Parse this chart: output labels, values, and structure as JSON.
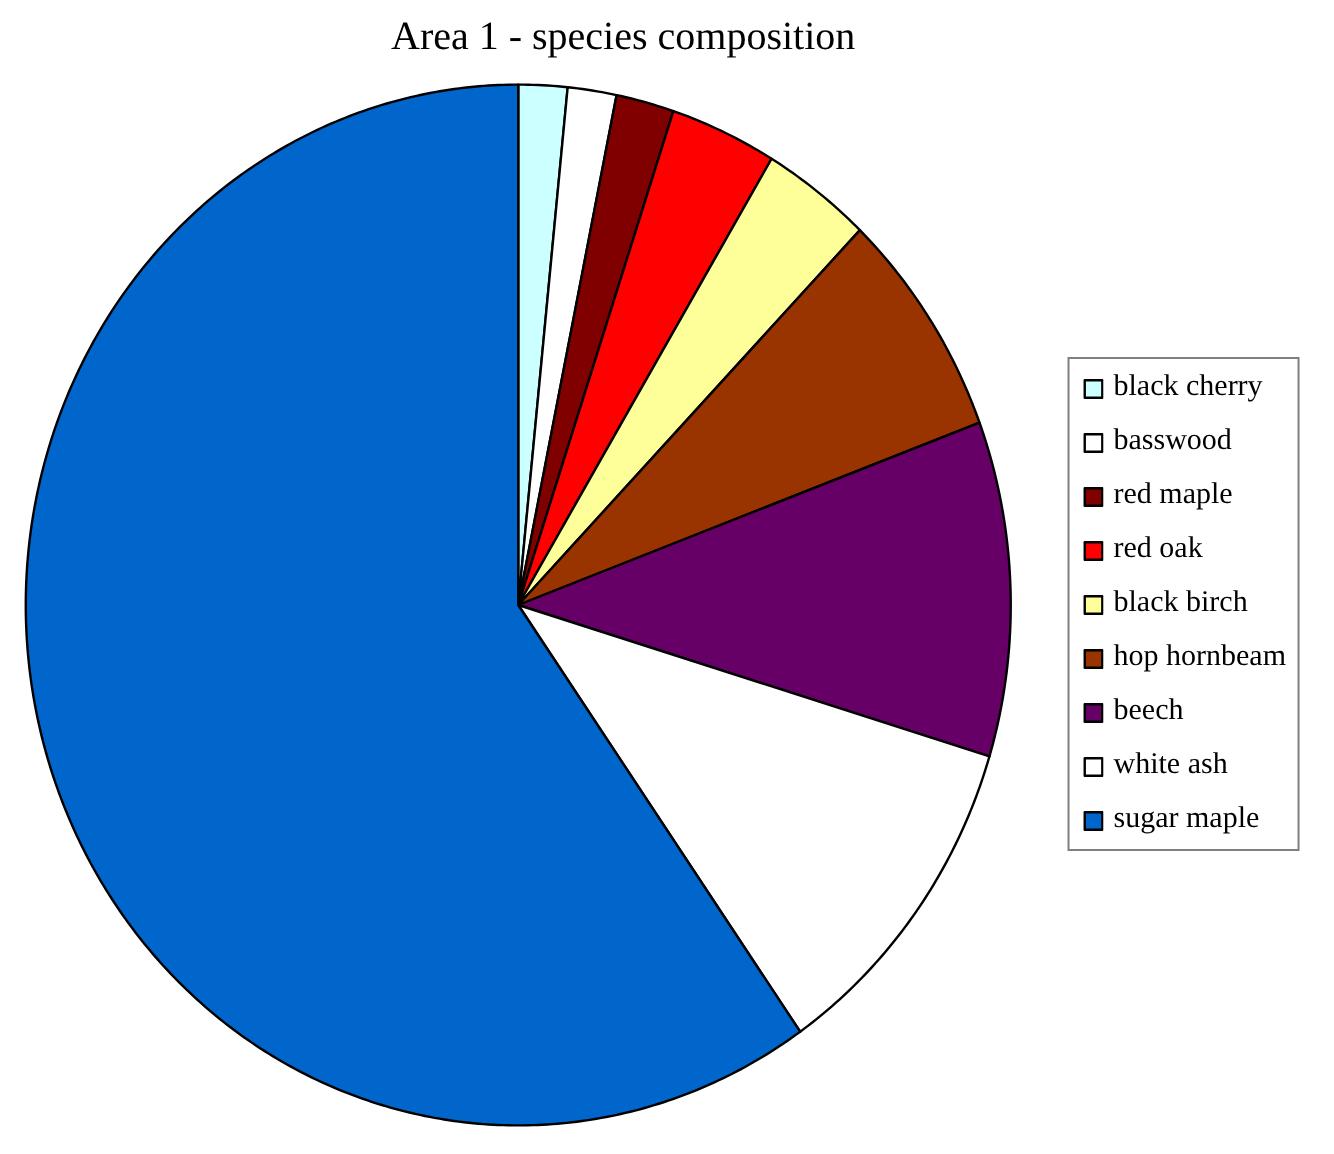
{
  "chart_data": {
    "type": "pie",
    "title": "Area 1 - species composition",
    "categories": [
      "black cherry",
      "basswood",
      "red maple",
      "red oak",
      "black birch",
      "hop hornbeam",
      "beech",
      "white ash",
      "sugar maple"
    ],
    "values": [
      1.6,
      1.6,
      1.9,
      3.5,
      3.6,
      7.1,
      10.4,
      10.6,
      59.7
    ],
    "colors": [
      "#ccffff",
      "#ffffff",
      "#800000",
      "#ff0000",
      "#ffff99",
      "#993300",
      "#660066",
      "#ffffff",
      "#0066cc"
    ],
    "legend": "right"
  }
}
